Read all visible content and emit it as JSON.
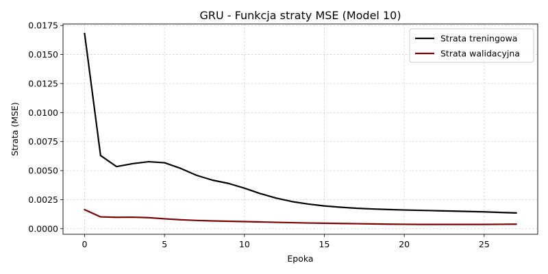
{
  "chart_data": {
    "type": "line",
    "title": "GRU - Funkcja straty MSE (Model 10)",
    "xlabel": "Epoka",
    "ylabel": "Strata (MSE)",
    "xlim": [
      -1.35,
      28.35
    ],
    "ylim": [
      -0.00048,
      0.01763
    ],
    "x_ticks": [
      0,
      5,
      10,
      15,
      20,
      25
    ],
    "y_ticks": [
      0.0,
      0.0025,
      0.005,
      0.0075,
      0.01,
      0.0125,
      0.015,
      0.0175
    ],
    "x_tick_labels": [
      "0",
      "5",
      "10",
      "15",
      "20",
      "25"
    ],
    "y_tick_labels": [
      "0.0000",
      "0.0025",
      "0.0050",
      "0.0075",
      "0.0100",
      "0.0125",
      "0.0150",
      "0.0175"
    ],
    "grid": true,
    "legend_position": "top-right",
    "x": [
      0,
      1,
      2,
      3,
      4,
      5,
      6,
      7,
      8,
      9,
      10,
      11,
      12,
      13,
      14,
      15,
      16,
      17,
      18,
      19,
      20,
      21,
      22,
      23,
      24,
      25,
      26,
      27
    ],
    "series": [
      {
        "name": "Strata treningowa",
        "color": "#000000",
        "values": [
          0.0168,
          0.0063,
          0.00535,
          0.0056,
          0.00577,
          0.00568,
          0.0052,
          0.0046,
          0.00418,
          0.0039,
          0.00349,
          0.00302,
          0.00263,
          0.00233,
          0.00212,
          0.00196,
          0.00185,
          0.00176,
          0.0017,
          0.00165,
          0.00161,
          0.00158,
          0.00155,
          0.00152,
          0.00148,
          0.00145,
          0.0014,
          0.00136
        ]
      },
      {
        "name": "Strata walidacyjna",
        "color": "#7f0000",
        "values": [
          0.00164,
          0.00102,
          0.00098,
          0.00099,
          0.00095,
          0.00085,
          0.00077,
          0.00071,
          0.00067,
          0.00064,
          0.00061,
          0.00058,
          0.00055,
          0.00052,
          0.00049,
          0.00047,
          0.00045,
          0.00043,
          0.00041,
          0.00039,
          0.00038,
          0.00037,
          0.00037,
          0.00037,
          0.00037,
          0.00037,
          0.00038,
          0.00039
        ]
      }
    ]
  }
}
